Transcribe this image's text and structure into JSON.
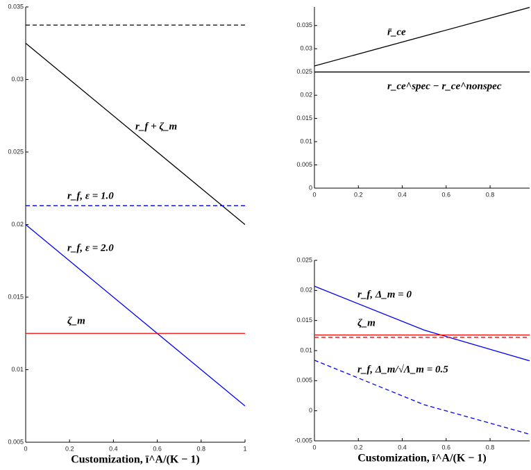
{
  "chart_data": [
    {
      "type": "line",
      "xlabel": "Customization, ī^A/(K − 1)",
      "x": [
        0,
        1
      ],
      "xlim": [
        0,
        1
      ],
      "xticks": [
        0,
        0.2,
        0.4,
        0.6,
        0.8,
        1
      ],
      "ylim": [
        0.005,
        0.035
      ],
      "yticks": [
        0.005,
        0.01,
        0.015,
        0.02,
        0.025,
        0.03,
        0.035
      ],
      "series": [
        {
          "color": "#000000",
          "dashed": true,
          "values": [
            0.03375,
            0.03375
          ]
        },
        {
          "color": "#000000",
          "dashed": false,
          "values": [
            0.0325,
            0.02
          ]
        },
        {
          "color": "#0000ff",
          "dashed": true,
          "values": [
            0.0213,
            0.0213
          ]
        },
        {
          "color": "#0000ff",
          "dashed": false,
          "values": [
            0.02,
            0.0075
          ]
        },
        {
          "color": "#ff0000",
          "dashed": false,
          "values": [
            0.0125,
            0.0125
          ]
        }
      ],
      "annotations": [
        "r_f + ζ_m",
        "r_f, ε = 1.0",
        "r_f, ε = 2.0",
        "ζ_m"
      ]
    },
    {
      "type": "line",
      "x": [
        0,
        0.98
      ],
      "xlim": [
        0,
        0.98
      ],
      "xticks": [
        0,
        0.2,
        0.4,
        0.6,
        0.8
      ],
      "ylim": [
        0,
        0.039
      ],
      "yticks": [
        0,
        0.005,
        0.01,
        0.015,
        0.02,
        0.025,
        0.03,
        0.035
      ],
      "series": [
        {
          "color": "#000000",
          "dashed": false,
          "values": [
            0.0263,
            0.0389
          ]
        },
        {
          "color": "#000000",
          "dashed": false,
          "values": [
            0.025,
            0.025
          ]
        }
      ],
      "annotations": [
        "r̄_ce",
        "r_ce^spec − r_ce^nonspec"
      ]
    },
    {
      "type": "line",
      "xlabel": "Customization, ī^A/(K − 1)",
      "x": [
        0,
        0.5,
        0.98
      ],
      "xlim": [
        0,
        0.98
      ],
      "xticks": [
        0,
        0.2,
        0.4,
        0.6,
        0.8
      ],
      "ylim": [
        -0.005,
        0.025
      ],
      "yticks": [
        -0.005,
        0,
        0.005,
        0.01,
        0.015,
        0.02,
        0.025
      ],
      "series": [
        {
          "color": "#0000ff",
          "dashed": false,
          "values": [
            0.0207,
            0.0134,
            0.0083
          ]
        },
        {
          "color": "#0000ff",
          "dashed": true,
          "values": [
            0.0084,
            0.001,
            -0.0039
          ]
        },
        {
          "color": "#ff0000",
          "dashed": false,
          "values": [
            0.0126,
            0.0126,
            0.0126
          ]
        },
        {
          "color": "#ff0000",
          "dashed": true,
          "values": [
            0.0122,
            0.0122,
            0.0122
          ]
        }
      ],
      "annotations": [
        "r_f, Δ_m = 0",
        "ζ_m",
        "r_f, Δ_m/√Λ_m = 0.5"
      ]
    }
  ]
}
